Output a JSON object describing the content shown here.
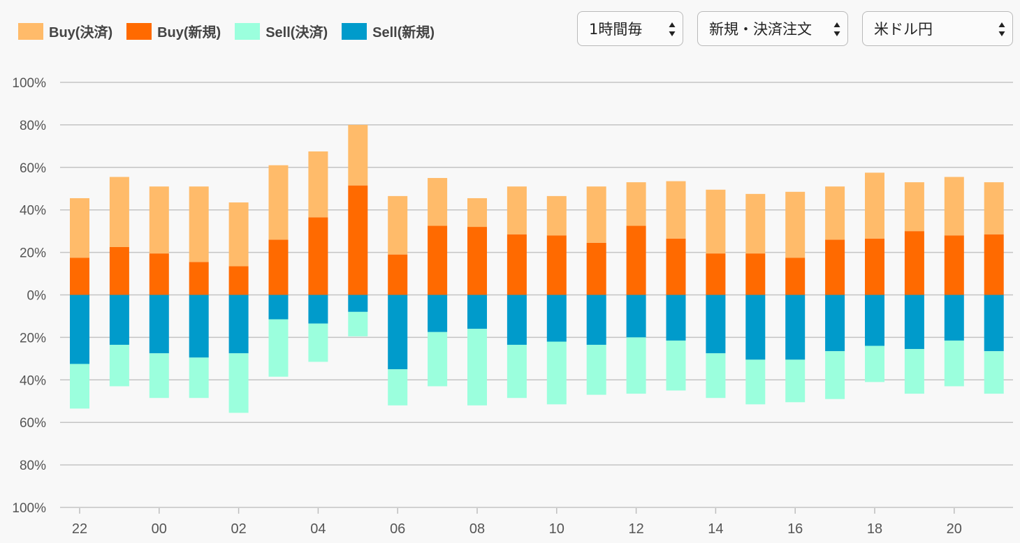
{
  "legend": [
    {
      "label": "Buy(決済)",
      "color": "#ffbb6a"
    },
    {
      "label": "Buy(新規)",
      "color": "#ff6a00"
    },
    {
      "label": "Sell(決済)",
      "color": "#9bffdd"
    },
    {
      "label": "Sell(新規)",
      "color": "#009bcb"
    }
  ],
  "controls": {
    "interval": "1時間毎",
    "order_type": "新規・決済注文",
    "currency_pair": "米ドル円"
  },
  "chart_data": {
    "type": "bar",
    "stacked": "diverging",
    "grid": true,
    "ylim": [
      -100,
      100
    ],
    "yticks": [
      "100%",
      "80%",
      "60%",
      "40%",
      "20%",
      "0%",
      "20%",
      "40%",
      "60%",
      "80%",
      "100%"
    ],
    "xticks": [
      "22",
      "00",
      "02",
      "04",
      "06",
      "08",
      "10",
      "12",
      "14",
      "16",
      "18",
      "20"
    ],
    "categories": [
      "22",
      "23",
      "00",
      "01",
      "02",
      "03",
      "04",
      "05",
      "06",
      "07",
      "08",
      "09",
      "10",
      "11",
      "12",
      "13",
      "14",
      "15",
      "16",
      "17",
      "18",
      "19",
      "20",
      "21"
    ],
    "series": [
      {
        "name": "Buy(新規)",
        "color": "#ff6a00",
        "values": [
          17.5,
          22.5,
          19.5,
          15.5,
          13.5,
          26,
          36.5,
          51.5,
          19,
          32.5,
          32,
          28.5,
          28,
          24.5,
          32.5,
          26.5,
          19.5,
          19.5,
          17.5,
          26,
          26.5,
          30,
          28,
          28.5
        ]
      },
      {
        "name": "Buy(決済)",
        "color": "#ffbb6a",
        "values": [
          28,
          33,
          31.5,
          35.5,
          30,
          35,
          31,
          28.5,
          27.5,
          22.5,
          13.5,
          22.5,
          18.5,
          26.5,
          20.5,
          27,
          30,
          28,
          31,
          25,
          31,
          23,
          27.5,
          24.5
        ]
      },
      {
        "name": "Sell(新規)",
        "color": "#009bcb",
        "values": [
          32.5,
          23.5,
          27.5,
          29.5,
          27.5,
          11.5,
          13.5,
          8,
          35,
          17.5,
          16,
          23.5,
          22,
          23.5,
          20,
          21.5,
          27.5,
          30.5,
          30.5,
          26.5,
          24,
          25.5,
          21.5,
          26.5
        ]
      },
      {
        "name": "Sell(決済)",
        "color": "#9bffdd",
        "values": [
          21,
          19.5,
          21,
          19,
          28,
          27,
          18,
          11.5,
          17,
          25.5,
          36,
          25,
          29.5,
          23.5,
          26.5,
          23.5,
          21,
          21,
          20,
          22.5,
          17,
          21,
          21.5,
          20
        ]
      }
    ]
  }
}
